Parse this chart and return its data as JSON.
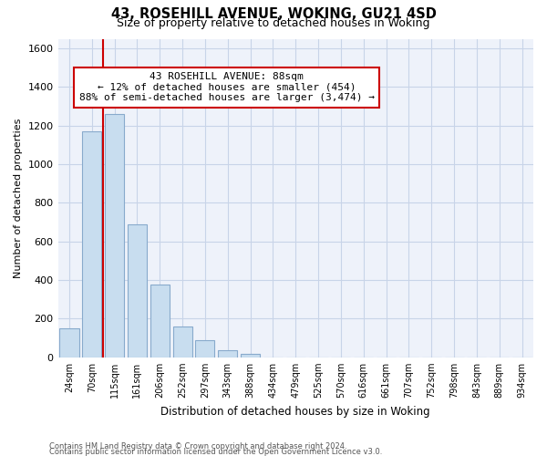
{
  "title": "43, ROSEHILL AVENUE, WOKING, GU21 4SD",
  "subtitle": "Size of property relative to detached houses in Woking",
  "xlabel": "Distribution of detached houses by size in Woking",
  "ylabel": "Number of detached properties",
  "footnote1": "Contains HM Land Registry data © Crown copyright and database right 2024.",
  "footnote2": "Contains public sector information licensed under the Open Government Licence v3.0.",
  "bar_labels": [
    "24sqm",
    "70sqm",
    "115sqm",
    "161sqm",
    "206sqm",
    "252sqm",
    "297sqm",
    "343sqm",
    "388sqm",
    "434sqm",
    "479sqm",
    "525sqm",
    "570sqm",
    "616sqm",
    "661sqm",
    "707sqm",
    "752sqm",
    "798sqm",
    "843sqm",
    "889sqm",
    "934sqm"
  ],
  "bar_values": [
    148,
    1170,
    1260,
    690,
    375,
    160,
    90,
    35,
    20,
    0,
    0,
    0,
    0,
    0,
    0,
    0,
    0,
    0,
    0,
    0,
    0
  ],
  "bar_color": "#c8ddef",
  "bar_edge_color": "#88aacc",
  "highlight_color": "#cc0000",
  "ylim": [
    0,
    1650
  ],
  "yticks": [
    0,
    200,
    400,
    600,
    800,
    1000,
    1200,
    1400,
    1600
  ],
  "annotation_title": "43 ROSEHILL AVENUE: 88sqm",
  "annotation_line1": "← 12% of detached houses are smaller (454)",
  "annotation_line2": "88% of semi-detached houses are larger (3,474) →",
  "vline_x": 1.5,
  "grid_color": "#c8d4e8",
  "background_color": "#ffffff",
  "plot_bg_color": "#eef2fa"
}
